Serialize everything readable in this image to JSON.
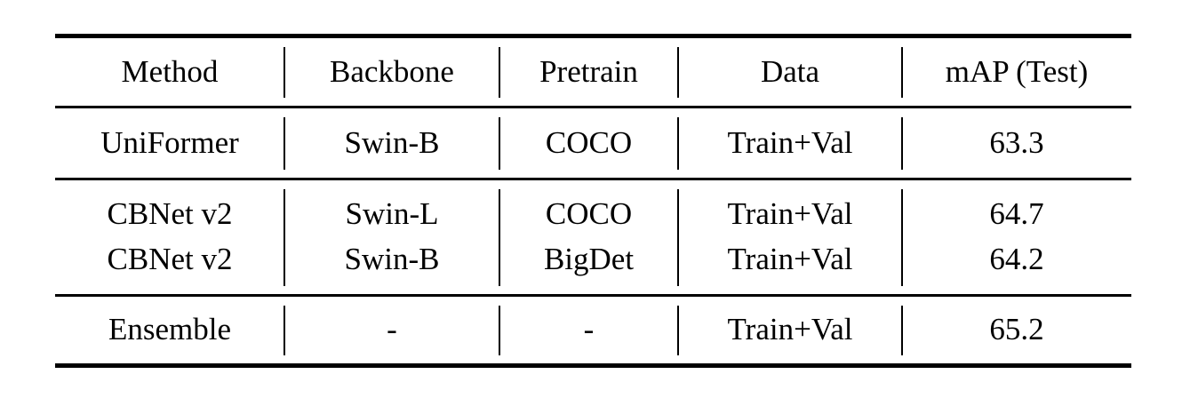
{
  "page": {
    "background": "#ffffff",
    "rule_color": "#000000",
    "text_color": "#000000"
  },
  "table": {
    "columns": [
      "Method",
      "Backbone",
      "Pretrain",
      "Data",
      "mAP (Test)"
    ],
    "groups": [
      {
        "rows": [
          [
            "UniFormer",
            "Swin-B",
            "COCO",
            "Train+Val",
            "63.3"
          ]
        ]
      },
      {
        "rows": [
          [
            "CBNet v2",
            "Swin-L",
            "COCO",
            "Train+Val",
            "64.7"
          ],
          [
            "CBNet v2",
            "Swin-B",
            "BigDet",
            "Train+Val",
            "64.2"
          ]
        ]
      },
      {
        "rows": [
          [
            "Ensemble",
            "-",
            "-",
            "Train+Val",
            "65.2"
          ]
        ]
      }
    ]
  }
}
